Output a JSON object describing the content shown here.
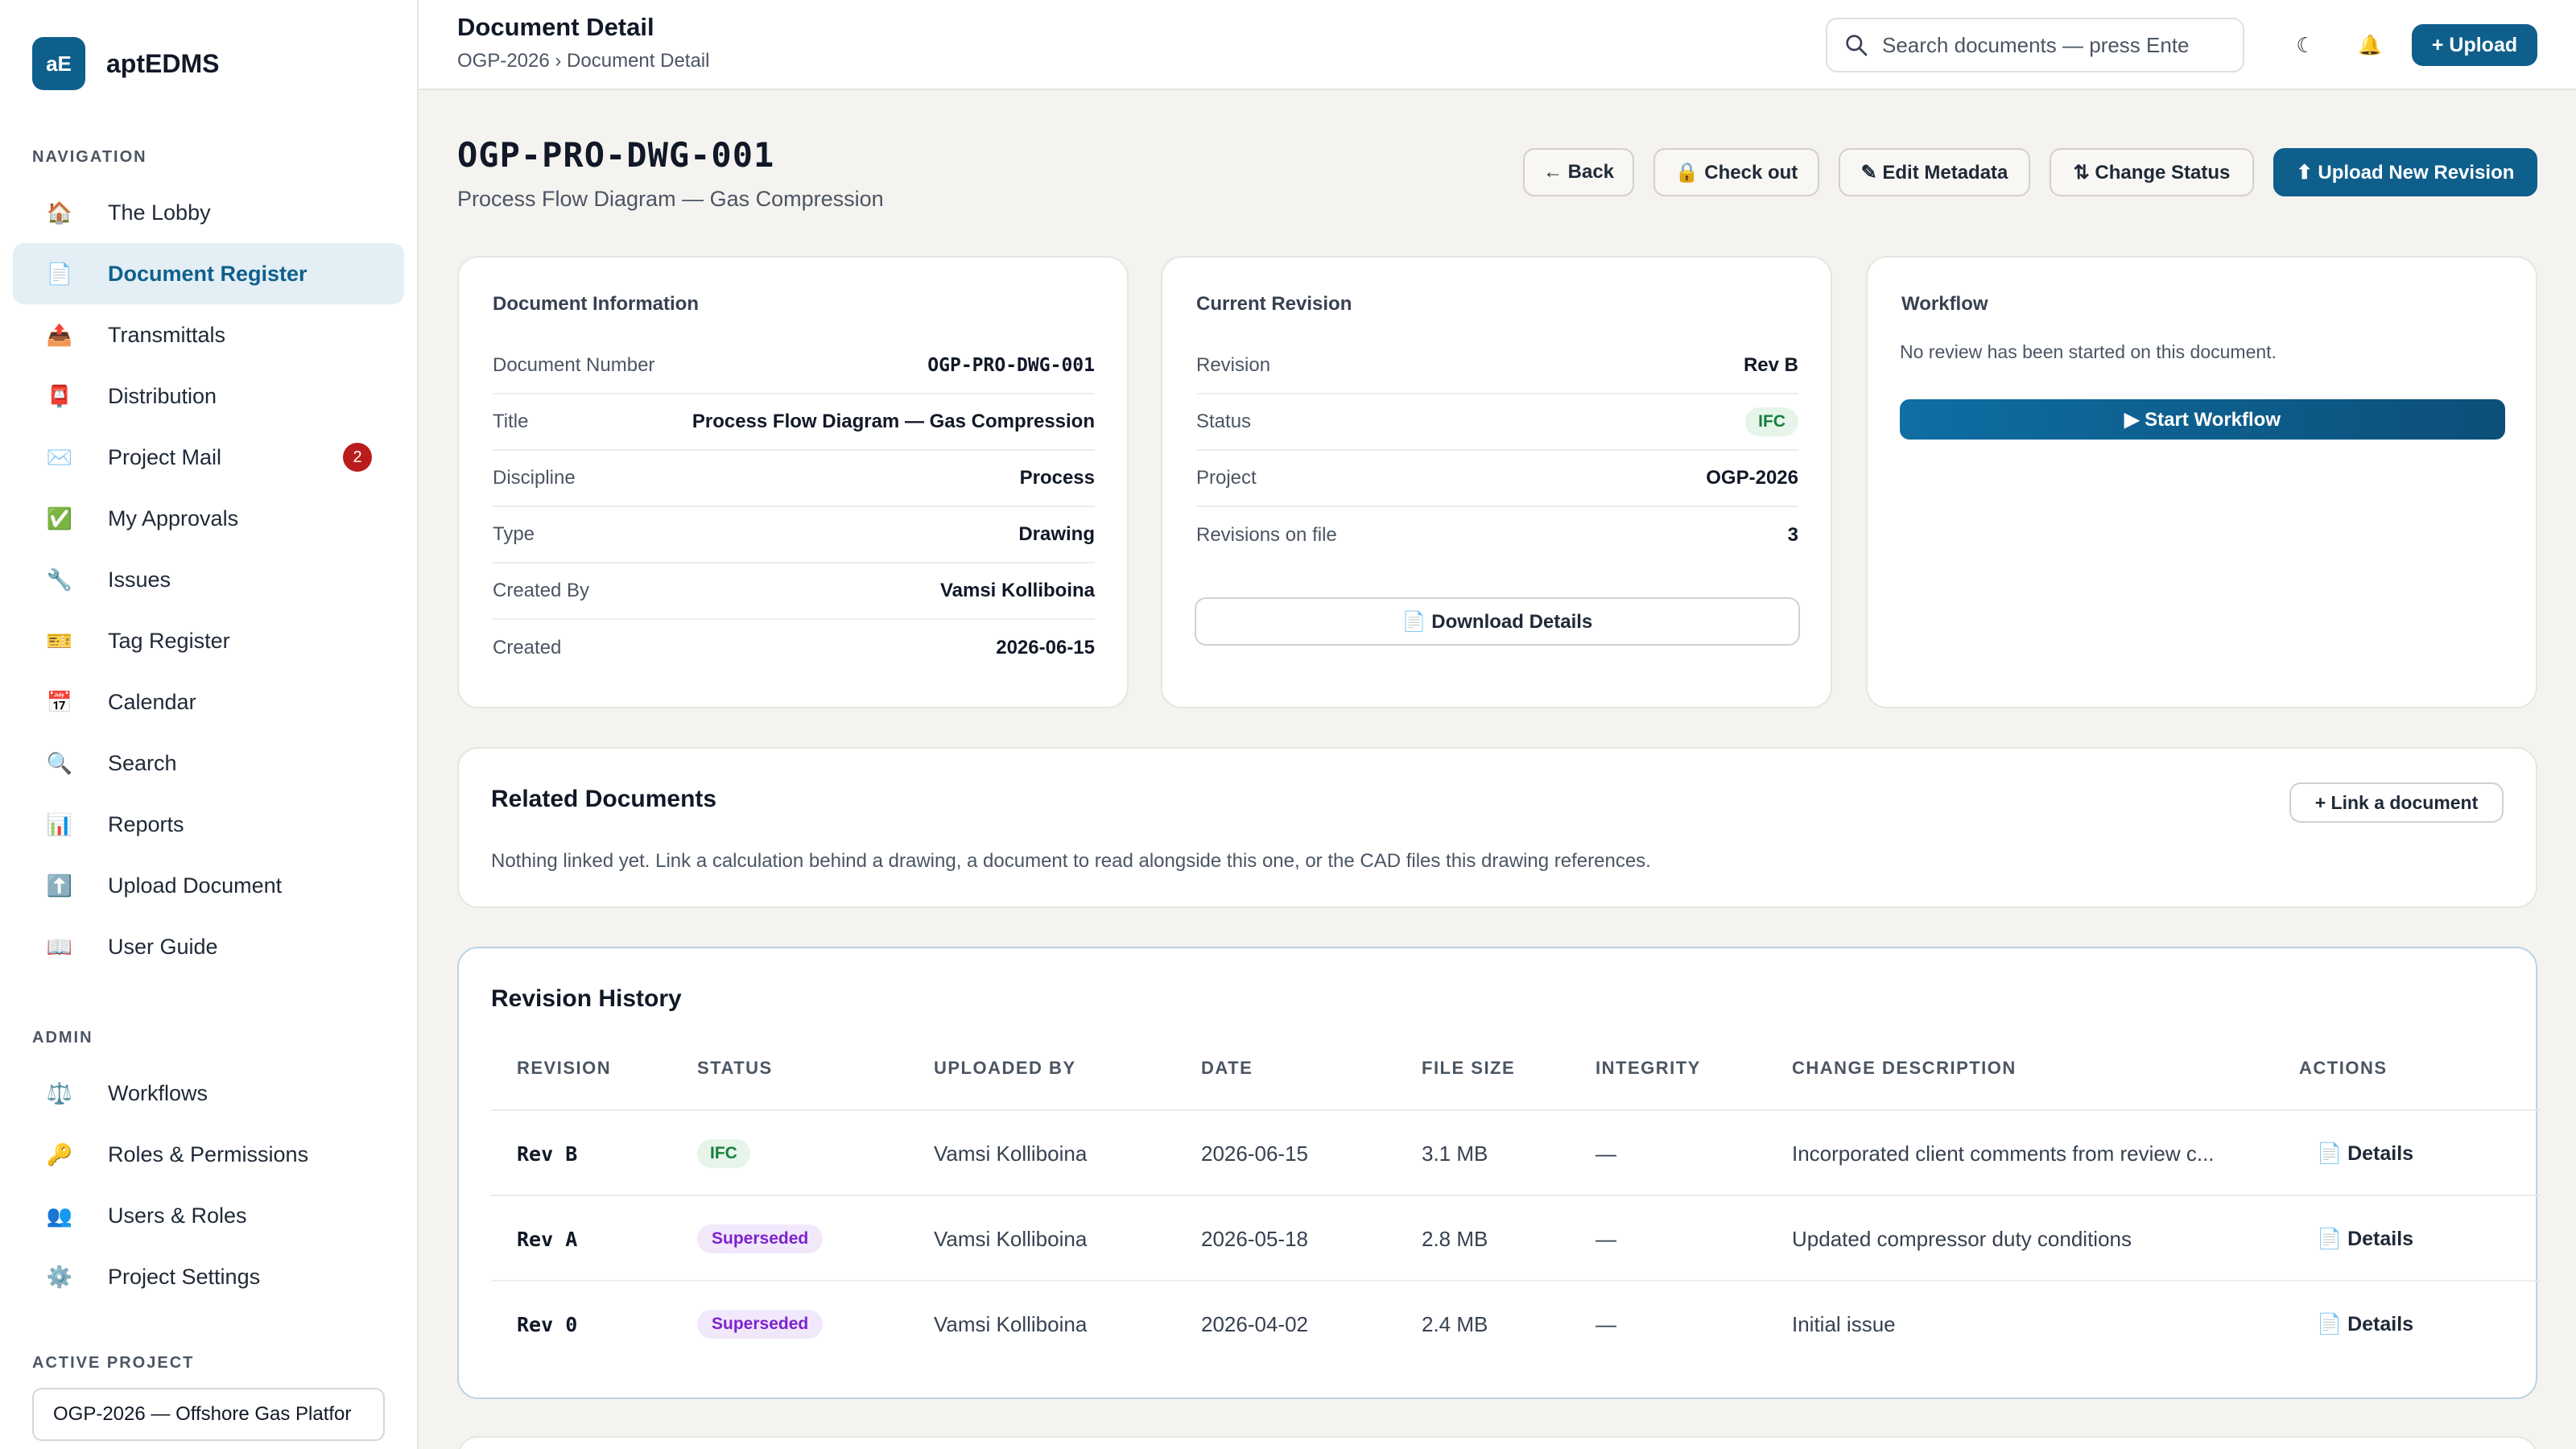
{
  "app": {
    "logo": "aE",
    "name": "aptEDMS"
  },
  "sidebar": {
    "navigation_label": "NAVIGATION",
    "nav_items": [
      {
        "label": "The Lobby",
        "icon": "🏠"
      },
      {
        "label": "Document Register",
        "icon": "📄",
        "active": true
      },
      {
        "label": "Transmittals",
        "icon": "📤"
      },
      {
        "label": "Distribution",
        "icon": "📮"
      },
      {
        "label": "Project Mail",
        "icon": "✉️",
        "badge": "2"
      },
      {
        "label": "My Approvals",
        "icon": "✅"
      },
      {
        "label": "Issues",
        "icon": "🔧"
      },
      {
        "label": "Tag Register",
        "icon": "🎫"
      },
      {
        "label": "Calendar",
        "icon": "📅"
      },
      {
        "label": "Search",
        "icon": "🔍"
      },
      {
        "label": "Reports",
        "icon": "📊"
      },
      {
        "label": "Upload Document",
        "icon": "⬆️"
      },
      {
        "label": "User Guide",
        "icon": "📖"
      }
    ],
    "admin_label": "ADMIN",
    "admin_items": [
      {
        "label": "Workflows",
        "icon": "⚖️"
      },
      {
        "label": "Roles & Permissions",
        "icon": "🔑"
      },
      {
        "label": "Users & Roles",
        "icon": "👥"
      },
      {
        "label": "Project Settings",
        "icon": "⚙️"
      }
    ],
    "active_project_label": "ACTIVE PROJECT",
    "active_project": "OGP-2026 — Offshore Gas Platfor"
  },
  "topbar": {
    "title": "Document Detail",
    "breadcrumb": "OGP-2026 › Document Detail",
    "search_placeholder": "Search documents — press Ente",
    "theme_icon": "☾",
    "bell_icon": "🔔",
    "upload_label": "+ Upload"
  },
  "document": {
    "number": "OGP-PRO-DWG-001",
    "subtitle": "Process Flow Diagram — Gas Compression"
  },
  "actions": {
    "back": "← Back",
    "checkout": "🔒 Check out",
    "edit": "✎ Edit Metadata",
    "status": "⇅ Change Status",
    "upload_revision": "⬆ Upload New Revision"
  },
  "doc_info": {
    "heading": "Document Information",
    "rows": [
      {
        "k": "Document Number",
        "v": "OGP-PRO-DWG-001"
      },
      {
        "k": "Title",
        "v": "Process Flow Diagram — Gas Compression"
      },
      {
        "k": "Discipline",
        "v": "Process"
      },
      {
        "k": "Type",
        "v": "Drawing"
      },
      {
        "k": "Created By",
        "v": "Vamsi Kolliboina"
      },
      {
        "k": "Created",
        "v": "2026-06-15"
      }
    ]
  },
  "current_revision": {
    "heading": "Current Revision",
    "rows": [
      {
        "k": "Revision",
        "v": "Rev B"
      },
      {
        "k": "Status",
        "v": "IFC"
      },
      {
        "k": "Project",
        "v": "OGP-2026"
      },
      {
        "k": "Revisions on file",
        "v": "3"
      }
    ],
    "download_label": "📄 Download Details"
  },
  "workflow": {
    "heading": "Workflow",
    "message": "No review has been started on this document.",
    "start_label": "▶ Start Workflow"
  },
  "related": {
    "heading": "Related Documents",
    "link_label": "+ Link a document",
    "empty_text": "Nothing linked yet. Link a calculation behind a drawing, a document to read alongside this one, or the CAD files this drawing references."
  },
  "revision_history": {
    "heading": "Revision History",
    "columns": [
      "REVISION",
      "STATUS",
      "UPLOADED BY",
      "DATE",
      "FILE SIZE",
      "INTEGRITY",
      "CHANGE DESCRIPTION",
      "ACTIONS"
    ],
    "rows": [
      {
        "revision": "Rev B",
        "status": "IFC",
        "uploaded_by": "Vamsi Kolliboina",
        "date": "2026-06-15",
        "size": "3.1 MB",
        "integrity": "—",
        "description": "Incorporated client comments from review c...",
        "action": "📄 Details"
      },
      {
        "revision": "Rev A",
        "status": "Superseded",
        "uploaded_by": "Vamsi Kolliboina",
        "date": "2026-05-18",
        "size": "2.8 MB",
        "integrity": "—",
        "description": "Updated compressor duty conditions",
        "action": "📄 Details"
      },
      {
        "revision": "Rev 0",
        "status": "Superseded",
        "uploaded_by": "Vamsi Kolliboina",
        "date": "2026-04-02",
        "size": "2.4 MB",
        "integrity": "—",
        "description": "Initial issue",
        "action": "📄 Details"
      }
    ]
  },
  "colors": {
    "brand": "#0f5f8c",
    "badge_ifc": "#15803d",
    "badge_superseded": "#7e22ce",
    "alert": "#b91c1c"
  }
}
